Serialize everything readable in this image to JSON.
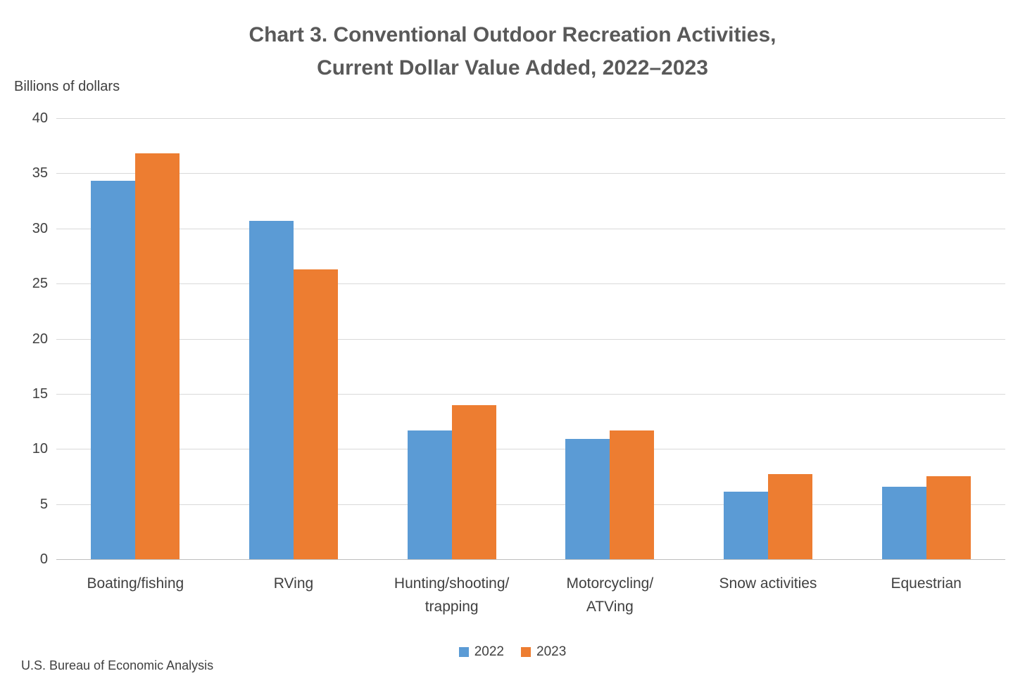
{
  "title": {
    "line1": "Chart 3. Conventional Outdoor Recreation Activities,",
    "line2": "Current Dollar Value Added, 2022–2023"
  },
  "y_axis_title": "Billions of dollars",
  "source": "U.S. Bureau of Economic Analysis",
  "colors": {
    "series_2022": "#5b9bd5",
    "series_2023": "#ed7d31",
    "gridline": "#d9d9d9",
    "text": "#404040",
    "title_text": "#595959"
  },
  "chart_data": {
    "type": "bar",
    "title": "Chart 3. Conventional Outdoor Recreation Activities, Current Dollar Value Added, 2022–2023",
    "ylabel": "Billions of dollars",
    "xlabel": "",
    "categories": [
      "Boating/fishing",
      "RVing",
      "Hunting/shooting/\ntrapping",
      "Motorcycling/\nATVing",
      "Snow activities",
      "Equestrian"
    ],
    "series": [
      {
        "name": "2022",
        "color": "#5b9bd5",
        "values": [
          34.3,
          30.7,
          11.7,
          10.9,
          6.1,
          6.6
        ]
      },
      {
        "name": "2023",
        "color": "#ed7d31",
        "values": [
          36.8,
          26.3,
          14.0,
          11.7,
          7.7,
          7.5
        ]
      }
    ],
    "ylim": [
      0,
      40
    ],
    "ytick_step": 5,
    "yticks": [
      0,
      5,
      10,
      15,
      20,
      25,
      30,
      35,
      40
    ],
    "grid": true,
    "legend_position": "bottom",
    "legend_entries": [
      "2022",
      "2023"
    ]
  }
}
